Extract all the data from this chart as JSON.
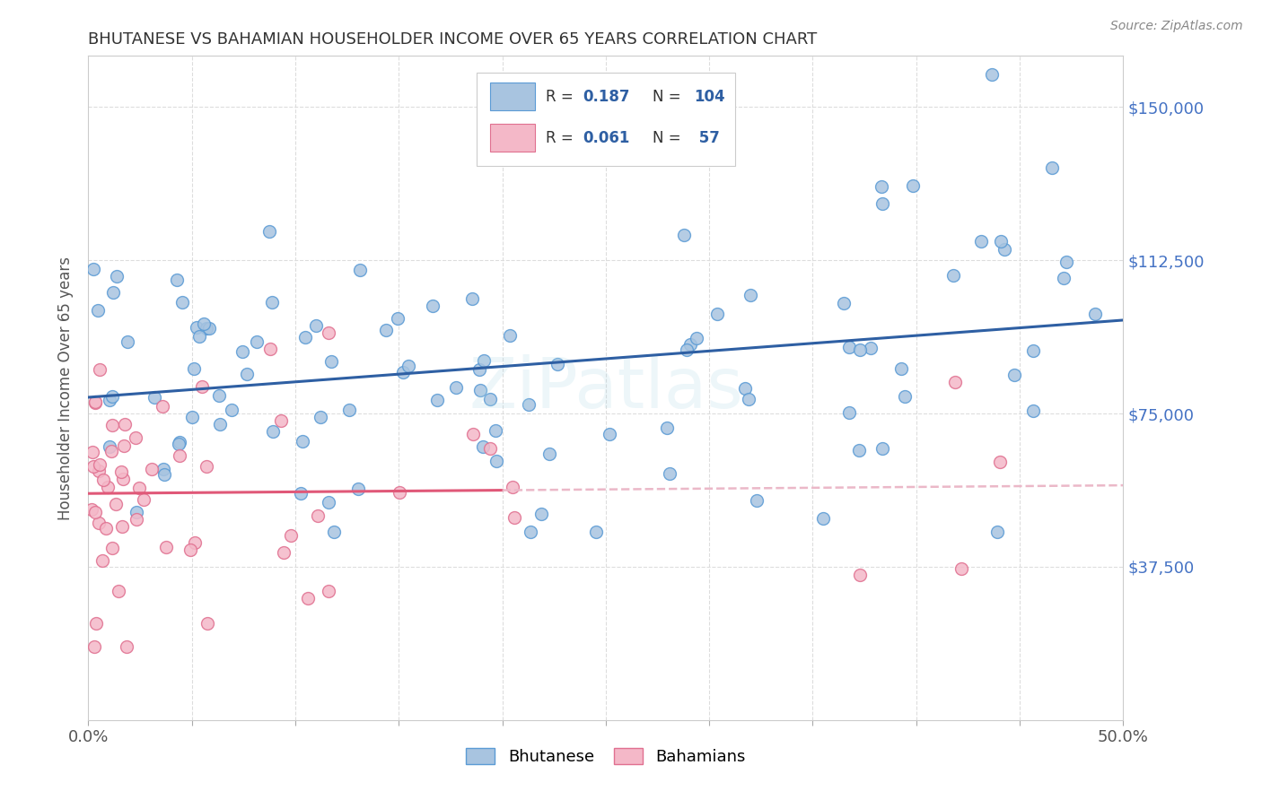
{
  "title": "BHUTANESE VS BAHAMIAN HOUSEHOLDER INCOME OVER 65 YEARS CORRELATION CHART",
  "source": "Source: ZipAtlas.com",
  "ylabel": "Householder Income Over 65 years",
  "xlim": [
    0.0,
    0.5
  ],
  "ylim": [
    0,
    162500
  ],
  "xtick_values": [
    0.0,
    0.05,
    0.1,
    0.15,
    0.2,
    0.25,
    0.3,
    0.35,
    0.4,
    0.45,
    0.5
  ],
  "xtick_show_labels": [
    0.0,
    0.5
  ],
  "xtick_label_map": {
    "0.0": "0.0%",
    "0.5": "50.0%"
  },
  "ytick_values": [
    0,
    37500,
    75000,
    112500,
    150000
  ],
  "ytick_labels": [
    "",
    "$37,500",
    "$75,000",
    "$112,500",
    "$150,000"
  ],
  "bhutanese_color": "#a8c4e0",
  "bhutanese_edge_color": "#5b9bd5",
  "bahamian_color": "#f4b8c8",
  "bahamian_edge_color": "#e07090",
  "bhutanese_line_color": "#2e5fa3",
  "bahamian_line_solid_color": "#e05878",
  "bahamian_line_dashed_color": "#ebb8c8",
  "legend_label1": "Bhutanese",
  "legend_label2": "Bahamians",
  "watermark": "ZiPatlas",
  "background_color": "#ffffff",
  "grid_color": "#dddddd",
  "title_color": "#333333",
  "axis_label_color": "#555555",
  "right_tick_color": "#4472c4",
  "marker_size": 100,
  "seed": 42,
  "n_bhutanese": 104,
  "n_bahamians": 57,
  "R_bhutanese": 0.187,
  "R_bahamians": 0.061,
  "legend_R1_val": "0.187",
  "legend_N1_val": "104",
  "legend_R2_val": "0.061",
  "legend_N2_val": " 57"
}
